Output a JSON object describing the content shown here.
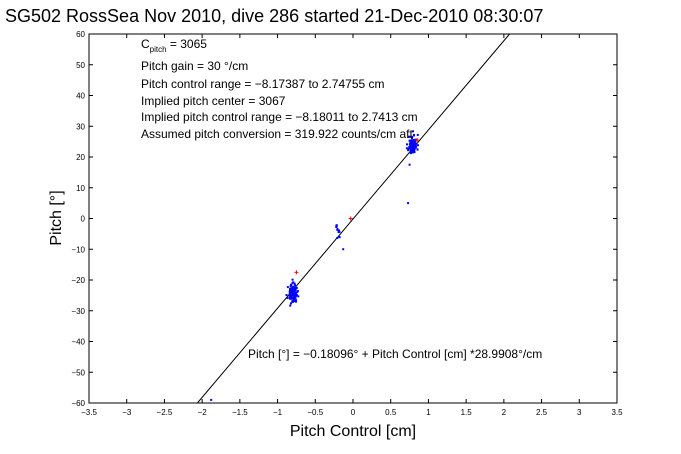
{
  "chart_data": {
    "type": "scatter",
    "title": "SG502 RossSea Nov 2010, dive 286 started 21-Dec-2010 08:30:07",
    "xlabel": "Pitch Control [cm]",
    "ylabel": "Pitch [°]",
    "xlim": [
      -3.5,
      3.5
    ],
    "ylim": [
      -60,
      60
    ],
    "xticks": [
      -3.5,
      -3,
      -2.5,
      -2,
      -1.5,
      -1,
      -0.5,
      0,
      0.5,
      1,
      1.5,
      2,
      2.5,
      3,
      3.5
    ],
    "yticks": [
      -60,
      -50,
      -40,
      -30,
      -20,
      -10,
      0,
      10,
      20,
      30,
      40,
      50,
      60
    ],
    "xtick_labels": [
      "−3.5",
      "−3",
      "−2.5",
      "−2",
      "−1.5",
      "−1",
      "−0.5",
      "0",
      "0.5",
      "1",
      "1.5",
      "2",
      "2.5",
      "3",
      "3.5"
    ],
    "ytick_labels": [
      "−60",
      "−50",
      "−40",
      "−30",
      "−20",
      "−10",
      "0",
      "10",
      "20",
      "30",
      "40",
      "50",
      "60"
    ],
    "grid": false,
    "legend": "none",
    "colors": {
      "points": "#0000ff",
      "outliers": "#ff0000",
      "fit": "#000000"
    },
    "fit_line": {
      "intercept": -0.18096,
      "slope": 28.9908
    },
    "clusters": [
      {
        "cx": 0.79,
        "cy": 24.0,
        "sx": 0.03,
        "sy": 1.6,
        "n": 90,
        "seed": 11
      },
      {
        "cx": -0.8,
        "cy": -24.5,
        "sx": 0.03,
        "sy": 1.5,
        "n": 90,
        "seed": 23
      },
      {
        "cx": -0.2,
        "cy": -4.5,
        "sx": 0.015,
        "sy": 1.2,
        "n": 14,
        "seed": 37
      }
    ],
    "points_extra": [
      {
        "x": 0.73,
        "y": 5
      },
      {
        "x": 0.75,
        "y": 17.5
      },
      {
        "x": -1.88,
        "y": -59
      },
      {
        "x": -0.13,
        "y": -10
      }
    ],
    "outliers": [
      {
        "x": -0.03,
        "y": 0
      },
      {
        "x": -0.75,
        "y": -17.5
      },
      {
        "x": 0.85,
        "y": 25.5
      }
    ],
    "annotations": {
      "c_pitch_main": "C",
      "c_pitch_sub": "pitch",
      "c_pitch_value": " = 3065",
      "pitch_gain": "Pitch gain = 30 °/cm",
      "control_range": "Pitch control range = −8.17387 to 2.74755 cm",
      "implied_center": "Implied pitch center = 3067",
      "implied_range": "Implied pitch control range = −8.18011 to 2.7413 cm",
      "assumed_conversion": "Assumed pitch conversion = 319.922 counts/cm aft",
      "fit_equation": "Pitch [°] = −0.18096° + Pitch Control [cm] *28.9908°/cm"
    }
  }
}
